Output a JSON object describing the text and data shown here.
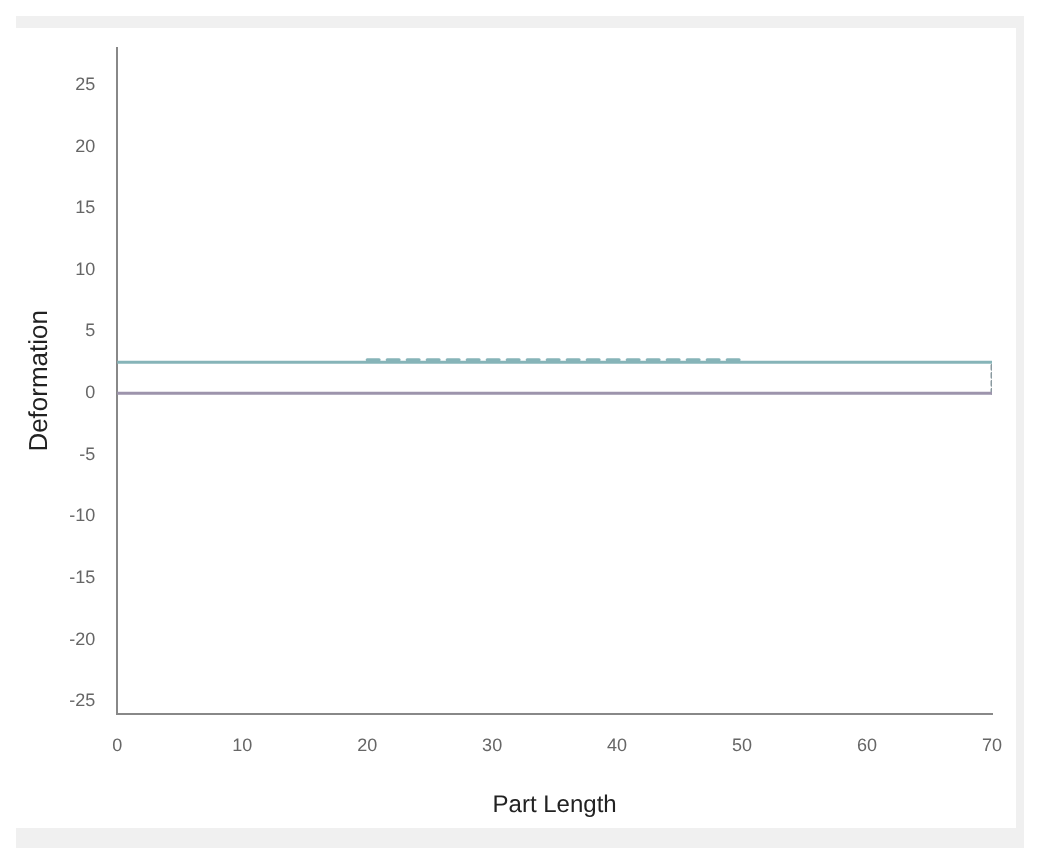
{
  "chart_data": {
    "type": "line",
    "xlabel": "Part Length",
    "ylabel": "Deformation",
    "series": [
      {
        "color": "#86b4b8",
        "x": [
          0,
          70
        ],
        "values": [
          2.5,
          2.5
        ],
        "line_style": "solid"
      },
      {
        "color": "#9d94ac",
        "x": [
          0,
          70
        ],
        "values": [
          0,
          0
        ],
        "line_style": "solid"
      },
      {
        "color": "#8a9aa0",
        "x": [
          70,
          70
        ],
        "values": [
          0,
          2.5
        ],
        "line_style": "dotted"
      },
      {
        "color": "#86b4b8",
        "x": [
          20,
          50
        ],
        "values": [
          2.7,
          2.7
        ],
        "line_style": "dashed"
      }
    ],
    "xlim": [
      0,
      70
    ],
    "xticks": [
      0,
      10,
      20,
      30,
      40,
      50,
      60,
      70
    ],
    "ylim": [
      -26,
      28
    ],
    "yticks": [
      -25,
      -20,
      -15,
      -10,
      -5,
      0,
      5,
      10,
      15,
      20,
      25
    ],
    "grid": false,
    "legend": false,
    "marker": "none"
  }
}
